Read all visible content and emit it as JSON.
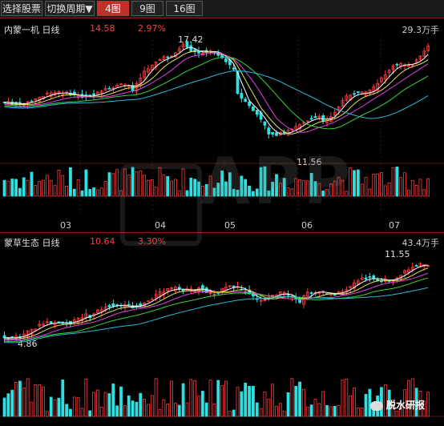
{
  "toolbar": {
    "select_stock": "选择股票",
    "switch_period": "切换周期▼",
    "layouts": [
      "4图",
      "9图",
      "16图"
    ],
    "active_layout": "4图"
  },
  "top_panel": {
    "stock_name": "内蒙一机 日线",
    "price": "14.58",
    "change": "2.97%",
    "volume_max": "29.3万手",
    "high_label": "17.42",
    "low_label": "11.56",
    "months": [
      "03",
      "04",
      "05",
      "06",
      "07"
    ]
  },
  "bottom_panel": {
    "stock_name": "蒙草生态 日线",
    "price": "10.64",
    "change": "3.30%",
    "volume_max": "43.4万手",
    "high_label": "11.55",
    "low_label": "4.86"
  },
  "watermark": {
    "text": "APP",
    "source": "脱水研报"
  },
  "colors": {
    "up": "#ff3b3b",
    "down": "#2fe0e0",
    "ma_white": "#ffffff",
    "ma_yellow": "#e8e05a",
    "ma_magenta": "#e040e0",
    "ma_green": "#3ad43a",
    "ma_cyan": "#2ab8d8"
  }
}
